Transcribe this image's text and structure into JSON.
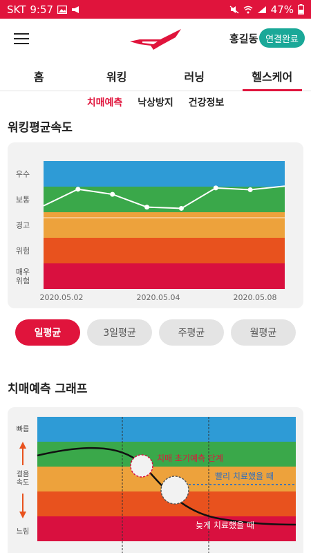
{
  "status_bar": {
    "carrier": "SKT",
    "time": "9:57",
    "battery": "47%",
    "icons": [
      "image-icon",
      "megaphone-icon",
      "mute-icon",
      "wifi-icon",
      "signal-icon",
      "battery-icon"
    ]
  },
  "header": {
    "user_name": "홍길동",
    "connection_status": "연결완료",
    "brand_color": "#e0143c",
    "badge_color": "#1aa898"
  },
  "tabs": [
    {
      "label": "홈",
      "active": false
    },
    {
      "label": "워킹",
      "active": false
    },
    {
      "label": "러닝",
      "active": false
    },
    {
      "label": "헬스케어",
      "active": true
    }
  ],
  "subtabs": [
    {
      "label": "치매예측",
      "active": true
    },
    {
      "label": "낙상방지",
      "active": false
    },
    {
      "label": "건강정보",
      "active": false
    }
  ],
  "walking_speed": {
    "title": "워킹평균속도",
    "chart_data": {
      "type": "line",
      "bands": [
        {
          "label": "우수",
          "color": "#2e9bd6"
        },
        {
          "label": "보통",
          "color": "#3aa84a"
        },
        {
          "label": "경고",
          "color": "#eda23c"
        },
        {
          "label": "위험",
          "color": "#e8521e"
        },
        {
          "label": "매우\n위험",
          "color": "#d9103f"
        }
      ],
      "x_tick_labels": [
        "2020.05.02",
        "2020.05.04",
        "2020.05.08"
      ],
      "values": [
        3.25,
        3.9,
        3.7,
        3.2,
        3.15,
        3.95,
        3.88,
        4.02
      ],
      "y_range": [
        0,
        5
      ],
      "line_color": "#ffffff"
    }
  },
  "period_buttons": [
    {
      "label": "일평균",
      "active": true
    },
    {
      "label": "3일평균",
      "active": false
    },
    {
      "label": "주평균",
      "active": false
    },
    {
      "label": "월평균",
      "active": false
    }
  ],
  "dementia_graph": {
    "title": "치매예측 그래프",
    "y_labels": {
      "fast": "빠름",
      "speed": "걸음\n속도",
      "slow": "느림"
    },
    "annotations": {
      "early_stage": "치매 초기예측 단계",
      "treated_early": "빨리 치료했을 때",
      "treated_late": "늦게 치료했을 때"
    },
    "colors": {
      "early_stage": "#e0143c",
      "treated_early": "#2f6fbf",
      "treated_late": "#ffffff"
    }
  }
}
